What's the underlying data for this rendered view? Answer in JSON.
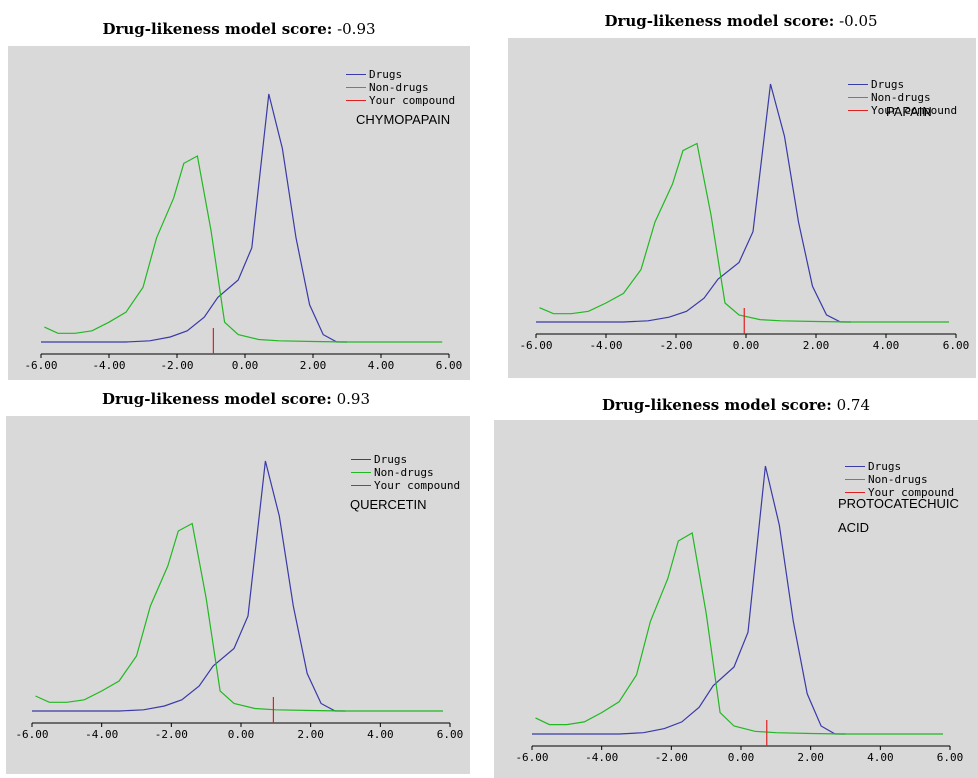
{
  "title_label": "Drug-likeness model score:",
  "legend": [
    {
      "name": "Drugs",
      "color": "#3a3aa8"
    },
    {
      "name": "Non-drugs",
      "color": "#22b822"
    },
    {
      "name": "Your compound",
      "color": "#e02020"
    }
  ],
  "chart_data": [
    {
      "type": "line",
      "score": "-0.93",
      "compound": [
        "CHYMOPAPAIN"
      ],
      "xlim": [
        -6,
        6
      ],
      "x_ticks": [
        "-6.00",
        "-4.00",
        "-2.00",
        "0.00",
        "2.00",
        "4.00",
        "6.00"
      ],
      "marker_x": -0.93,
      "series": [
        {
          "name": "Drugs",
          "points": [
            [
              -6,
              0
            ],
            [
              -5.3,
              0
            ],
            [
              -4.5,
              0
            ],
            [
              -3.5,
              0
            ],
            [
              -2.8,
              0.005
            ],
            [
              -2.2,
              0.02
            ],
            [
              -1.7,
              0.045
            ],
            [
              -1.2,
              0.1
            ],
            [
              -0.8,
              0.18
            ],
            [
              -0.2,
              0.25
            ],
            [
              0.2,
              0.38
            ],
            [
              0.7,
              1.0
            ],
            [
              1.1,
              0.78
            ],
            [
              1.5,
              0.42
            ],
            [
              1.9,
              0.15
            ],
            [
              2.3,
              0.03
            ],
            [
              2.7,
              0.0
            ],
            [
              3.0,
              0.0
            ]
          ]
        },
        {
          "name": "Non-drugs",
          "points": [
            [
              -5.9,
              0.06
            ],
            [
              -5.5,
              0.035
            ],
            [
              -5,
              0.035
            ],
            [
              -4.5,
              0.045
            ],
            [
              -4,
              0.08
            ],
            [
              -3.5,
              0.12
            ],
            [
              -3,
              0.22
            ],
            [
              -2.6,
              0.42
            ],
            [
              -2.1,
              0.58
            ],
            [
              -1.8,
              0.72
            ],
            [
              -1.4,
              0.75
            ],
            [
              -1.0,
              0.45
            ],
            [
              -0.6,
              0.08
            ],
            [
              -0.2,
              0.03
            ],
            [
              0.4,
              0.01
            ],
            [
              1,
              0.005
            ],
            [
              2,
              0.002
            ],
            [
              3,
              0.0
            ],
            [
              4,
              0.0
            ],
            [
              5.8,
              0.0
            ]
          ]
        },
        {
          "name": "Your compound",
          "points": [
            [
              -0.93,
              0
            ],
            [
              -0.93,
              0.075
            ]
          ]
        }
      ]
    },
    {
      "type": "line",
      "score": "-0.05",
      "compound": [
        "PAPAIN"
      ],
      "xlim": [
        -6,
        6
      ],
      "x_ticks": [
        "-6.00",
        "-4.00",
        "-2.00",
        "0.00",
        "2.00",
        "4.00",
        "6.00"
      ],
      "marker_x": -0.05,
      "series": [
        {
          "name": "Drugs",
          "points": [
            [
              -6,
              0
            ],
            [
              -5.3,
              0
            ],
            [
              -4.5,
              0
            ],
            [
              -3.5,
              0
            ],
            [
              -2.8,
              0.005
            ],
            [
              -2.2,
              0.02
            ],
            [
              -1.7,
              0.045
            ],
            [
              -1.2,
              0.1
            ],
            [
              -0.8,
              0.18
            ],
            [
              -0.2,
              0.25
            ],
            [
              0.2,
              0.38
            ],
            [
              0.7,
              1.0
            ],
            [
              1.1,
              0.78
            ],
            [
              1.5,
              0.42
            ],
            [
              1.9,
              0.15
            ],
            [
              2.3,
              0.03
            ],
            [
              2.7,
              0.0
            ],
            [
              3.0,
              0.0
            ]
          ]
        },
        {
          "name": "Non-drugs",
          "points": [
            [
              -5.9,
              0.06
            ],
            [
              -5.5,
              0.035
            ],
            [
              -5,
              0.035
            ],
            [
              -4.5,
              0.045
            ],
            [
              -4,
              0.08
            ],
            [
              -3.5,
              0.12
            ],
            [
              -3,
              0.22
            ],
            [
              -2.6,
              0.42
            ],
            [
              -2.1,
              0.58
            ],
            [
              -1.8,
              0.72
            ],
            [
              -1.4,
              0.75
            ],
            [
              -1.0,
              0.45
            ],
            [
              -0.6,
              0.08
            ],
            [
              -0.2,
              0.03
            ],
            [
              0.4,
              0.01
            ],
            [
              1,
              0.005
            ],
            [
              2,
              0.002
            ],
            [
              3,
              0.0
            ],
            [
              4,
              0.0
            ],
            [
              5.8,
              0.0
            ]
          ]
        },
        {
          "name": "Your compound",
          "points": [
            [
              -0.05,
              0
            ],
            [
              -0.05,
              0.075
            ]
          ]
        }
      ]
    },
    {
      "type": "line",
      "score": "0.93",
      "compound": [
        "QUERCETIN"
      ],
      "xlim": [
        -6,
        6
      ],
      "x_ticks": [
        "-6.00",
        "-4.00",
        "-2.00",
        "0.00",
        "2.00",
        "4.00",
        "6.00"
      ],
      "marker_x": 0.93,
      "series": [
        {
          "name": "Drugs",
          "points": [
            [
              -6,
              0
            ],
            [
              -5.3,
              0
            ],
            [
              -4.5,
              0
            ],
            [
              -3.5,
              0
            ],
            [
              -2.8,
              0.005
            ],
            [
              -2.2,
              0.02
            ],
            [
              -1.7,
              0.045
            ],
            [
              -1.2,
              0.1
            ],
            [
              -0.8,
              0.18
            ],
            [
              -0.2,
              0.25
            ],
            [
              0.2,
              0.38
            ],
            [
              0.7,
              1.0
            ],
            [
              1.1,
              0.78
            ],
            [
              1.5,
              0.42
            ],
            [
              1.9,
              0.15
            ],
            [
              2.3,
              0.03
            ],
            [
              2.7,
              0.0
            ],
            [
              3.0,
              0.0
            ]
          ]
        },
        {
          "name": "Non-drugs",
          "points": [
            [
              -5.9,
              0.06
            ],
            [
              -5.5,
              0.035
            ],
            [
              -5,
              0.035
            ],
            [
              -4.5,
              0.045
            ],
            [
              -4,
              0.08
            ],
            [
              -3.5,
              0.12
            ],
            [
              -3,
              0.22
            ],
            [
              -2.6,
              0.42
            ],
            [
              -2.1,
              0.58
            ],
            [
              -1.8,
              0.72
            ],
            [
              -1.4,
              0.75
            ],
            [
              -1.0,
              0.45
            ],
            [
              -0.6,
              0.08
            ],
            [
              -0.2,
              0.03
            ],
            [
              0.4,
              0.01
            ],
            [
              1,
              0.005
            ],
            [
              2,
              0.002
            ],
            [
              3,
              0.0
            ],
            [
              4,
              0.0
            ],
            [
              5.8,
              0.0
            ]
          ]
        },
        {
          "name": "Your compound",
          "points": [
            [
              0.93,
              0
            ],
            [
              0.93,
              0.075
            ]
          ]
        }
      ]
    },
    {
      "type": "line",
      "score": "0.74",
      "compound": [
        "PROTOCATECHUIC",
        "ACID"
      ],
      "xlim": [
        -6,
        6
      ],
      "x_ticks": [
        "-6.00",
        "-4.00",
        "-2.00",
        "0.00",
        "2.00",
        "4.00",
        "6.00"
      ],
      "marker_x": 0.74,
      "series": [
        {
          "name": "Drugs",
          "points": [
            [
              -6,
              0
            ],
            [
              -5.3,
              0
            ],
            [
              -4.5,
              0
            ],
            [
              -3.5,
              0
            ],
            [
              -2.8,
              0.005
            ],
            [
              -2.2,
              0.02
            ],
            [
              -1.7,
              0.045
            ],
            [
              -1.2,
              0.1
            ],
            [
              -0.8,
              0.18
            ],
            [
              -0.2,
              0.25
            ],
            [
              0.2,
              0.38
            ],
            [
              0.7,
              1.0
            ],
            [
              1.1,
              0.78
            ],
            [
              1.5,
              0.42
            ],
            [
              1.9,
              0.15
            ],
            [
              2.3,
              0.03
            ],
            [
              2.7,
              0.0
            ],
            [
              3.0,
              0.0
            ]
          ]
        },
        {
          "name": "Non-drugs",
          "points": [
            [
              -5.9,
              0.06
            ],
            [
              -5.5,
              0.035
            ],
            [
              -5,
              0.035
            ],
            [
              -4.5,
              0.045
            ],
            [
              -4,
              0.08
            ],
            [
              -3.5,
              0.12
            ],
            [
              -3,
              0.22
            ],
            [
              -2.6,
              0.42
            ],
            [
              -2.1,
              0.58
            ],
            [
              -1.8,
              0.72
            ],
            [
              -1.4,
              0.75
            ],
            [
              -1.0,
              0.45
            ],
            [
              -0.6,
              0.08
            ],
            [
              -0.2,
              0.03
            ],
            [
              0.4,
              0.01
            ],
            [
              1,
              0.005
            ],
            [
              2,
              0.002
            ],
            [
              3,
              0.0
            ],
            [
              4,
              0.0
            ],
            [
              5.8,
              0.0
            ]
          ]
        },
        {
          "name": "Your compound",
          "points": [
            [
              0.74,
              0
            ],
            [
              0.74,
              0.075
            ]
          ]
        }
      ]
    }
  ]
}
